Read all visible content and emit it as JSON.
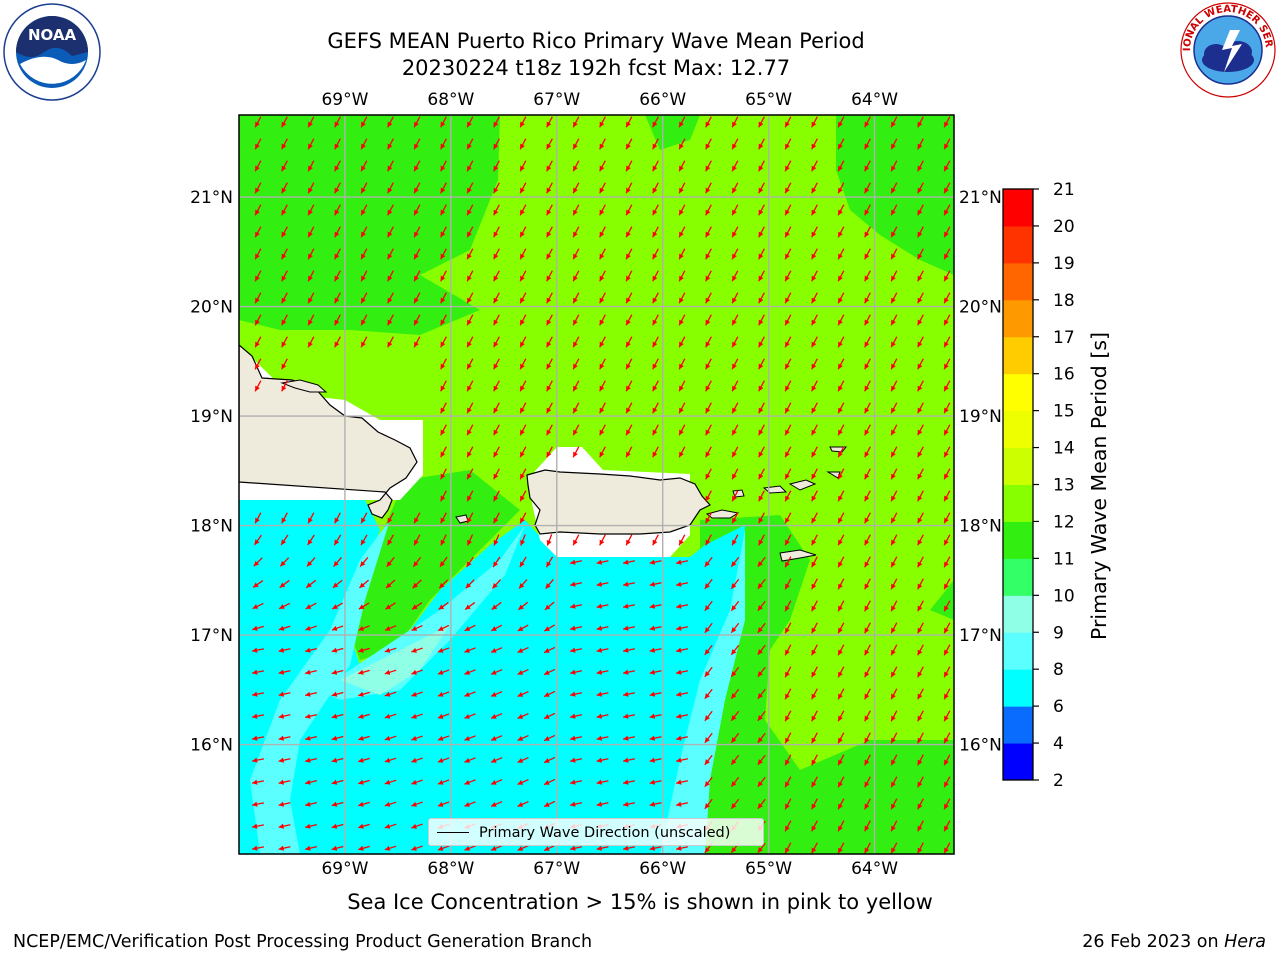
{
  "title": {
    "line1": "GEFS MEAN Puerto Rico Primary Wave Mean Period",
    "line2": "20230224 t18z 192h fcst   Max: 12.77"
  },
  "logos": {
    "left": "noaa-logo",
    "left_text": "NOAA",
    "right": "nws-logo",
    "right_text": "NATIONAL WEATHER SERVICE"
  },
  "map": {
    "lon_labels": [
      "69°W",
      "68°W",
      "67°W",
      "66°W",
      "65°W",
      "64°W"
    ],
    "lat_labels": [
      "21°N",
      "20°N",
      "19°N",
      "18°N",
      "17°N",
      "16°N"
    ],
    "lon_range": [
      -70.0,
      -63.25
    ],
    "lat_range": [
      15.0,
      21.75
    ],
    "land_color": "#efebdc",
    "arrow_color": "#ff0000",
    "grid": true,
    "legend_label": "Primary Wave Direction (unscaled)"
  },
  "colorbar": {
    "label": "Primary Wave Mean Period [s]",
    "ticks": [
      "2",
      "4",
      "6",
      "8",
      "9",
      "10",
      "11",
      "12",
      "13",
      "14",
      "15",
      "16",
      "17",
      "18",
      "19",
      "20",
      "21"
    ],
    "colors": [
      "#0000ff",
      "#0a6cff",
      "#00ffff",
      "#5cffff",
      "#8fffe6",
      "#33ff66",
      "#33ee11",
      "#88ff00",
      "#ccff00",
      "#eeff00",
      "#ffff00",
      "#ffcc00",
      "#ff9900",
      "#ff6600",
      "#ff3300",
      "#ff0000"
    ]
  },
  "footer": {
    "note": "Sea Ice Concentration > 15% is shown in pink to yellow",
    "left": "NCEP/EMC/Verification Post Processing Product Generation Branch",
    "right_prefix": "26 Feb 2023 on ",
    "right_host": "Hera"
  }
}
